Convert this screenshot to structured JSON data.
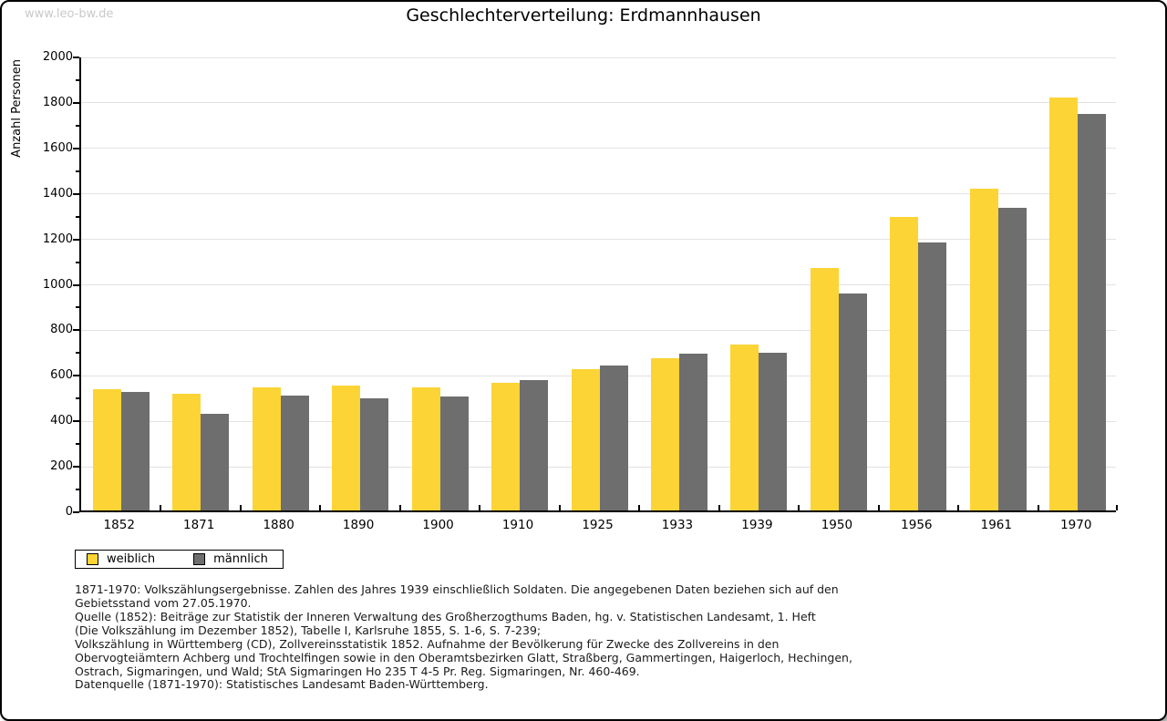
{
  "watermark": "www.leo-bw.de",
  "title": "Geschlechterverteilung: Erdmannhausen",
  "chart_data": {
    "type": "bar",
    "title": "Geschlechterverteilung: Erdmannhausen",
    "xlabel": "",
    "ylabel": "Anzahl Personen",
    "ylim": [
      0,
      2000
    ],
    "ytick_step": 200,
    "minor_tick_step": 100,
    "grid": true,
    "legend_position": "bottom-left",
    "categories": [
      "1852",
      "1871",
      "1880",
      "1890",
      "1900",
      "1910",
      "1925",
      "1933",
      "1939",
      "1950",
      "1956",
      "1961",
      "1970"
    ],
    "series": [
      {
        "name": "weiblich",
        "color": "#FCD435",
        "values": [
          535,
          513,
          540,
          551,
          543,
          562,
          622,
          669,
          729,
          1065,
          1290,
          1413,
          1816
        ]
      },
      {
        "name": "männlich",
        "color": "#6E6E6E",
        "values": [
          520,
          423,
          505,
          493,
          502,
          573,
          637,
          688,
          694,
          955,
          1178,
          1329,
          1744
        ]
      }
    ]
  },
  "footnotes": {
    "lines": [
      "1871-1970: Volkszählungsergebnisse. Zahlen des Jahres 1939 einschließlich Soldaten. Die angegebenen Daten beziehen sich auf den",
      "Gebietsstand vom 27.05.1970.",
      "Quelle (1852): Beiträge zur Statistik der Inneren Verwaltung des Großherzogthums Baden, hg. v. Statistischen Landesamt, 1. Heft",
      "(Die Volkszählung im Dezember 1852), Tabelle I, Karlsruhe 1855, S. 1-6, S. 7-239;",
      "Volkszählung in Württemberg (CD), Zollvereinsstatistik 1852. Aufnahme der Bevölkerung für Zwecke des Zollvereins in den",
      "Obervogteiämtern Achberg und Trochtelfingen sowie in den Oberamtsbezirken Glatt, Straßberg, Gammertingen, Haigerloch, Hechingen,",
      "Ostrach, Sigmaringen, und Wald; StA Sigmaringen Ho 235 T 4-5 Pr. Reg. Sigmaringen, Nr. 460-469."
    ],
    "source": "Datenquelle (1871-1970): Statistisches Landesamt Baden-Württemberg."
  }
}
